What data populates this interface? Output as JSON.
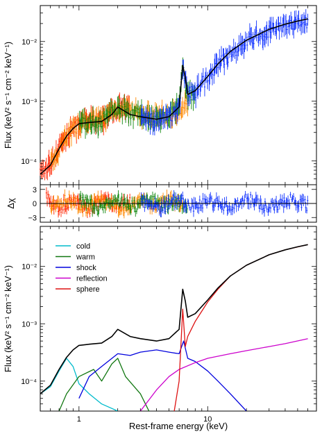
{
  "chart_data": [
    {
      "type": "line",
      "panel": "top",
      "ylabel": "Flux (keV² s⁻¹ cm⁻² keV⁻¹)",
      "xscale": "log",
      "yscale": "log",
      "xlim": [
        0.5,
        70
      ],
      "ylim": [
        4e-05,
        0.04
      ],
      "ytick_labels": [
        "10⁻⁴",
        "10⁻³",
        "10⁻²"
      ],
      "series": [
        {
          "color": "#ff2200",
          "x": [
            0.5,
            0.6,
            0.7,
            0.8,
            0.9,
            1.0,
            1.2,
            1.5,
            2.0,
            2.5
          ],
          "y": [
            6e-05,
            9e-05,
            0.00017,
            0.00027,
            0.00035,
            0.00042,
            0.00045,
            0.00048,
            0.0008,
            0.0007
          ]
        },
        {
          "color": "#ff8800",
          "x": [
            0.6,
            0.8,
            1.0,
            1.5,
            2.0,
            3.0,
            4.0,
            5.0,
            6.0,
            7.0
          ],
          "y": [
            9e-05,
            0.00028,
            0.00042,
            0.00048,
            0.0008,
            0.0006,
            0.00055,
            0.0006,
            0.0007,
            0.0009
          ]
        },
        {
          "color": "#118811",
          "x": [
            1.0,
            1.5,
            2.0,
            3.0,
            4.0,
            5.0,
            6.0,
            6.4,
            7.0,
            8.0
          ],
          "y": [
            0.00042,
            0.00048,
            0.0008,
            0.0006,
            0.0005,
            0.0006,
            0.0008,
            0.0038,
            0.0012,
            0.0013
          ]
        },
        {
          "color": "#1133ff",
          "x": [
            3.0,
            4.0,
            5.0,
            6.0,
            6.4,
            7.0,
            8.0,
            10,
            12,
            15,
            20,
            30,
            40,
            50,
            60
          ],
          "y": [
            0.0006,
            0.00045,
            0.00055,
            0.0008,
            0.0038,
            0.0014,
            0.0015,
            0.0026,
            0.004,
            0.0065,
            0.0102,
            0.0155,
            0.0185,
            0.02,
            0.021
          ]
        }
      ],
      "model": {
        "color": "#000000",
        "x": [
          0.5,
          0.6,
          0.7,
          0.8,
          0.9,
          1.0,
          1.2,
          1.5,
          1.8,
          2.0,
          2.5,
          3.0,
          4.0,
          5.0,
          6.0,
          6.4,
          6.7,
          7.0,
          8.0,
          10,
          12,
          15,
          20,
          30,
          40,
          50,
          60
        ],
        "y": [
          6e-05,
          8.5e-05,
          0.00016,
          0.00026,
          0.00035,
          0.00042,
          0.00044,
          0.00046,
          0.0006,
          0.0008,
          0.0006,
          0.00055,
          0.0005,
          0.00055,
          0.0008,
          0.004,
          0.0025,
          0.0013,
          0.0015,
          0.0026,
          0.0042,
          0.0068,
          0.0105,
          0.016,
          0.0195,
          0.022,
          0.024
        ]
      }
    },
    {
      "type": "scatter",
      "panel": "middle",
      "ylabel": "Δχ",
      "xscale": "log",
      "xlim": [
        0.5,
        70
      ],
      "ylim": [
        -4,
        4
      ],
      "ytick_labels": [
        "−3",
        "0",
        "3"
      ],
      "series": [
        {
          "color": "#ff2200",
          "x": [
            0.55,
            0.7,
            0.9,
            1.2,
            1.6,
            2.0,
            2.5
          ],
          "y": [
            1.5,
            -1.0,
            0.8,
            -1.2,
            1.0,
            -0.8,
            0.5
          ]
        },
        {
          "color": "#ff8800",
          "x": [
            0.6,
            0.8,
            1.1,
            1.5,
            2.2,
            3.0,
            4.0,
            5.0,
            6.5
          ],
          "y": [
            -0.8,
            1.2,
            -1.0,
            0.9,
            -1.3,
            1.1,
            -0.7,
            0.9,
            -0.6
          ]
        },
        {
          "color": "#118811",
          "x": [
            1.0,
            1.4,
            2.0,
            2.8,
            3.5,
            4.5,
            5.5,
            7.0
          ],
          "y": [
            1.0,
            -1.1,
            0.9,
            -0.8,
            1.2,
            -0.9,
            0.7,
            -0.5
          ]
        },
        {
          "color": "#1133ff",
          "x": [
            3.0,
            4.0,
            6.0,
            8.0,
            10,
            15,
            20,
            30,
            45,
            60
          ],
          "y": [
            0.8,
            -0.9,
            1.0,
            -1.1,
            0.9,
            -1.0,
            1.2,
            -0.8,
            0.9,
            -0.4
          ]
        }
      ]
    },
    {
      "type": "line",
      "panel": "bottom",
      "xlabel": "Rest-frame energy (keV)",
      "ylabel": "Flux (keV² s⁻¹ cm⁻² keV⁻¹)",
      "xscale": "log",
      "yscale": "log",
      "xlim": [
        0.5,
        70
      ],
      "ylim": [
        3e-05,
        0.05
      ],
      "xtick_labels": [
        "1",
        "10"
      ],
      "ytick_labels": [
        "10⁻⁴",
        "10⁻³",
        "10⁻²"
      ],
      "legend_position": "top-left",
      "series": [
        {
          "name": "cold",
          "color": "#00bbcc",
          "x": [
            0.5,
            0.6,
            0.7,
            0.8,
            0.9,
            1.0,
            1.2,
            1.5,
            2.0
          ],
          "y": [
            6e-05,
            8e-05,
            0.00015,
            0.00025,
            0.00018,
            9e-05,
            6e-05,
            4e-05,
            3e-05
          ]
        },
        {
          "name": "warm",
          "color": "#117711",
          "x": [
            0.7,
            0.8,
            1.0,
            1.3,
            1.5,
            1.8,
            2.0,
            2.3,
            3.0,
            3.5
          ],
          "y": [
            3e-05,
            6e-05,
            0.00012,
            0.00016,
            0.0001,
            0.0002,
            0.00025,
            0.00012,
            6e-05,
            3e-05
          ]
        },
        {
          "name": "shock",
          "color": "#0000dd",
          "x": [
            1.0,
            1.2,
            1.5,
            2.0,
            2.5,
            3.0,
            4.0,
            5.0,
            6.0,
            6.5,
            7.0,
            8.0,
            10,
            12,
            15,
            20
          ],
          "y": [
            5e-05,
            0.00012,
            0.00018,
            0.0003,
            0.00028,
            0.00032,
            0.00035,
            0.00032,
            0.0003,
            0.0005,
            0.00025,
            0.00022,
            0.00015,
            0.0001,
            6e-05,
            3e-05
          ]
        },
        {
          "name": "reflection",
          "color": "#cc00cc",
          "x": [
            3.0,
            4.0,
            5.0,
            6.0,
            8.0,
            10,
            15,
            20,
            30,
            40,
            60
          ],
          "y": [
            3e-05,
            7e-05,
            0.00012,
            0.00016,
            0.00021,
            0.00025,
            0.0003,
            0.00034,
            0.0004,
            0.00045,
            0.00055
          ]
        },
        {
          "name": "sphere",
          "color": "#dd1111",
          "x": [
            5.5,
            6.0,
            6.4,
            6.7,
            7.0,
            8.0,
            10,
            12,
            15,
            20,
            30,
            40,
            60
          ],
          "y": [
            3e-05,
            0.0001,
            0.0018,
            0.0004,
            0.0006,
            0.0011,
            0.0024,
            0.004,
            0.0068,
            0.0105,
            0.016,
            0.0195,
            0.024
          ]
        }
      ],
      "total": {
        "color": "#000000",
        "x": [
          0.5,
          0.6,
          0.7,
          0.8,
          0.9,
          1.0,
          1.2,
          1.5,
          1.8,
          2.0,
          2.5,
          3.0,
          4.0,
          5.0,
          6.0,
          6.4,
          6.7,
          7.0,
          8.0,
          10,
          12,
          15,
          20,
          30,
          40,
          50,
          60
        ],
        "y": [
          6e-05,
          8.5e-05,
          0.00016,
          0.00026,
          0.00035,
          0.00042,
          0.00044,
          0.00046,
          0.0006,
          0.0008,
          0.0006,
          0.00055,
          0.0005,
          0.00055,
          0.0008,
          0.004,
          0.0025,
          0.0013,
          0.0015,
          0.0026,
          0.0042,
          0.0068,
          0.0105,
          0.016,
          0.0195,
          0.022,
          0.024
        ]
      }
    }
  ]
}
